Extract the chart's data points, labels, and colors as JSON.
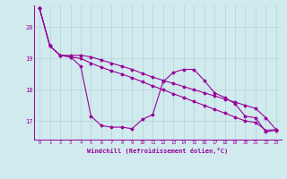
{
  "xlabel": "Windchill (Refroidissement éolien,°C)",
  "background_color": "#d0eaee",
  "line_color": "#990099",
  "grid_color": "#b8d8dc",
  "xlim": [
    -0.5,
    23.5
  ],
  "ylim": [
    16.4,
    20.7
  ],
  "yticks": [
    17,
    18,
    19,
    20
  ],
  "xticks": [
    0,
    1,
    2,
    3,
    4,
    5,
    6,
    7,
    8,
    9,
    10,
    11,
    12,
    13,
    14,
    15,
    16,
    17,
    18,
    19,
    20,
    21,
    22,
    23
  ],
  "series1_x": [
    0,
    1,
    2,
    3,
    4,
    5,
    6,
    7,
    8,
    9,
    10,
    11,
    12,
    13,
    14,
    15,
    16,
    17,
    18,
    19,
    20,
    21,
    22,
    23
  ],
  "series1_y": [
    20.6,
    19.4,
    19.1,
    19.05,
    18.75,
    17.15,
    16.85,
    16.8,
    16.8,
    16.75,
    17.05,
    17.2,
    18.25,
    18.55,
    18.65,
    18.65,
    18.3,
    17.9,
    17.75,
    17.55,
    17.15,
    17.1,
    16.65,
    16.7
  ],
  "series2_x": [
    0,
    1,
    2,
    3,
    4,
    5,
    6,
    7,
    8,
    9,
    10,
    11,
    12,
    13,
    14,
    15,
    16,
    17,
    18,
    19,
    20,
    21,
    22,
    23
  ],
  "series2_y": [
    20.6,
    19.4,
    19.1,
    19.05,
    19.0,
    18.85,
    18.72,
    18.6,
    18.5,
    18.38,
    18.25,
    18.12,
    18.0,
    17.87,
    17.75,
    17.62,
    17.5,
    17.37,
    17.25,
    17.12,
    17.0,
    16.95,
    16.7,
    16.72
  ],
  "series3_x": [
    0,
    1,
    2,
    3,
    4,
    5,
    6,
    7,
    8,
    9,
    10,
    11,
    12,
    13,
    14,
    15,
    16,
    17,
    18,
    19,
    20,
    21,
    22,
    23
  ],
  "series3_y": [
    20.6,
    19.4,
    19.1,
    19.1,
    19.1,
    19.05,
    18.95,
    18.85,
    18.75,
    18.65,
    18.52,
    18.4,
    18.3,
    18.2,
    18.1,
    18.0,
    17.9,
    17.8,
    17.7,
    17.6,
    17.5,
    17.4,
    17.1,
    16.72
  ]
}
